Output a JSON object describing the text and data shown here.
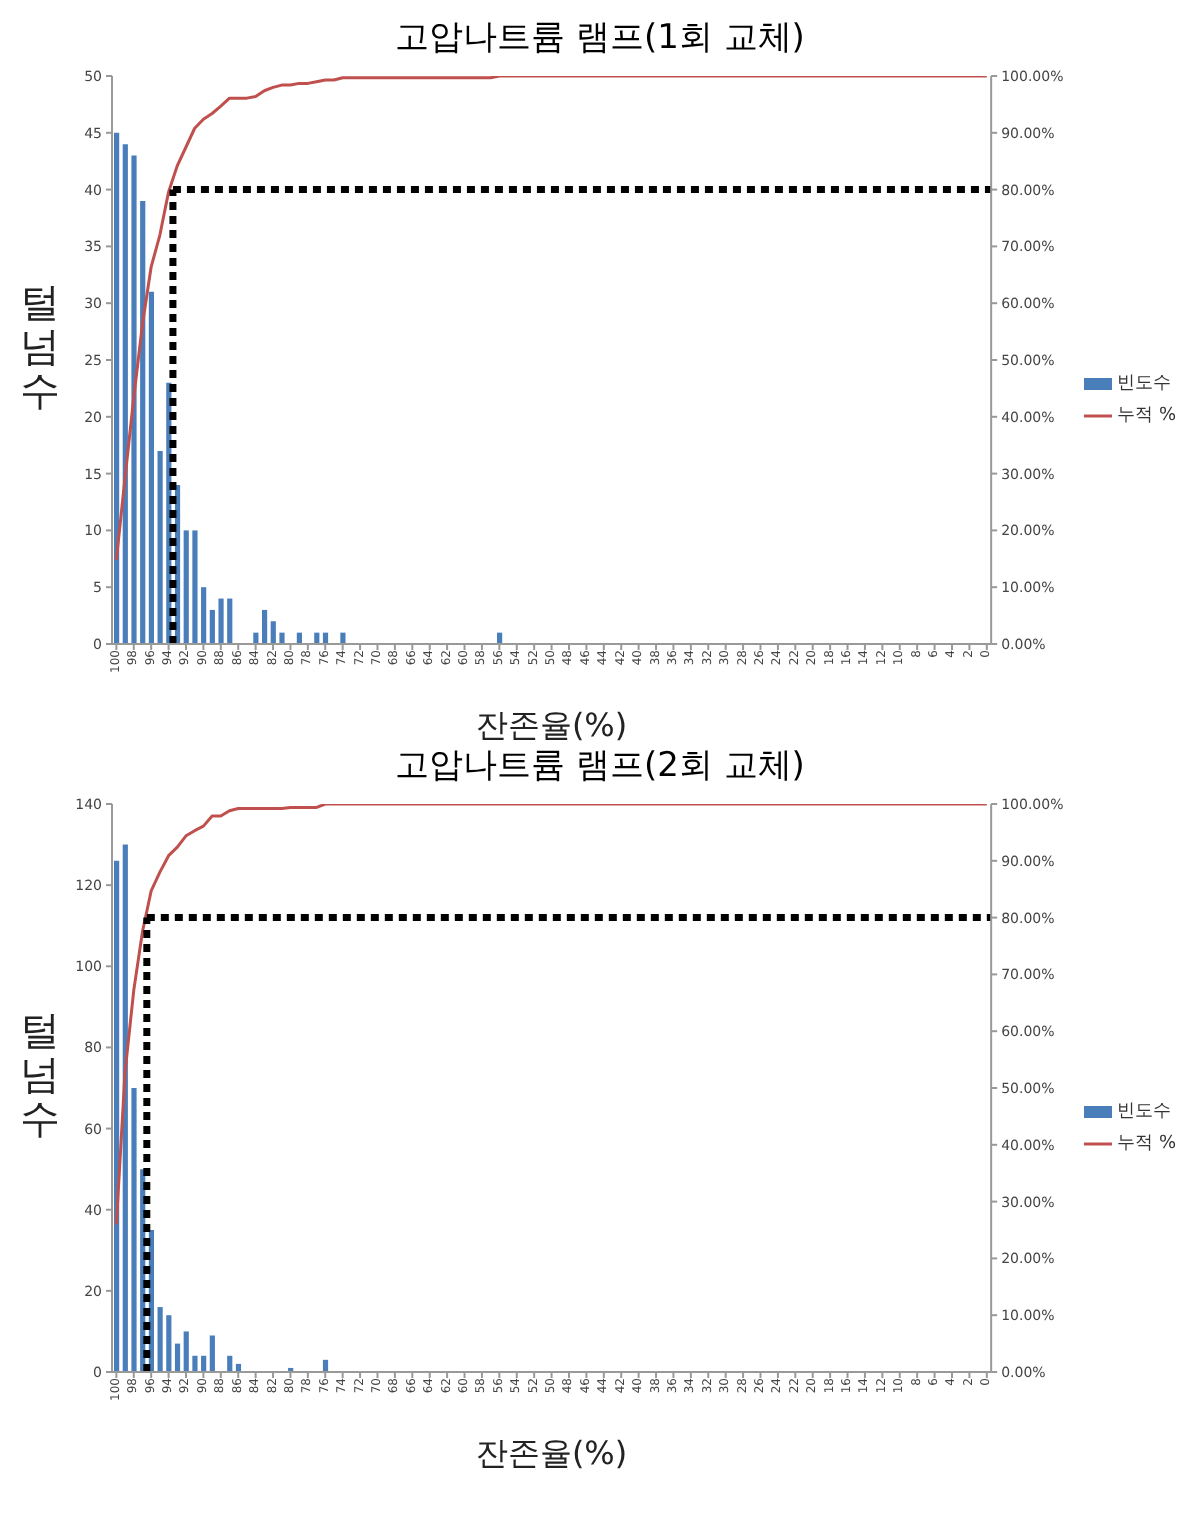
{
  "chart_data": [
    {
      "type": "bar",
      "title": "고압나트륨 램프(1회 교체)",
      "xlabel": "잔존율(%)",
      "ylabel": "털넘수",
      "x": [
        100,
        99,
        98,
        97,
        96,
        95,
        94,
        93,
        92,
        91,
        90,
        89,
        88,
        87,
        86,
        85,
        84,
        83,
        82,
        81,
        80,
        79,
        78,
        77,
        76,
        75,
        74,
        73,
        72,
        71,
        70,
        69,
        68,
        67,
        66,
        65,
        64,
        63,
        62,
        61,
        60,
        59,
        58,
        57,
        56,
        55,
        54,
        53,
        52,
        51,
        50,
        49,
        48,
        47,
        46,
        45,
        44,
        43,
        42,
        41,
        40,
        39,
        38,
        37,
        36,
        35,
        34,
        33,
        32,
        31,
        30,
        29,
        28,
        27,
        26,
        25,
        24,
        23,
        22,
        21,
        20,
        19,
        18,
        17,
        16,
        15,
        14,
        13,
        12,
        11,
        10,
        9,
        8,
        7,
        6,
        5,
        4,
        3,
        2,
        1,
        0
      ],
      "series": [
        {
          "name": "빈도수",
          "color": "#4a7ebb",
          "values": [
            45,
            44,
            43,
            39,
            31,
            17,
            23,
            14,
            10,
            10,
            5,
            3,
            4,
            4,
            0,
            0,
            1,
            3,
            2,
            1,
            0,
            1,
            0,
            1,
            1,
            0,
            1,
            0,
            0,
            0,
            0,
            0,
            0,
            0,
            0,
            0,
            0,
            0,
            0,
            0,
            0,
            0,
            0,
            0,
            1,
            0,
            0,
            0,
            0,
            0,
            0,
            0,
            0,
            0,
            0,
            0,
            0,
            0,
            0,
            0,
            0,
            0,
            0,
            0,
            0,
            0,
            0,
            0,
            0,
            0,
            0,
            0,
            0,
            0,
            0,
            0,
            0,
            0,
            0,
            0,
            0,
            0,
            0,
            0,
            0,
            0,
            0,
            0,
            0,
            0,
            0,
            0,
            0,
            0,
            0,
            0,
            0,
            0,
            0,
            0,
            0
          ]
        },
        {
          "name": "누적 %",
          "type": "line",
          "axis": "y2",
          "color": "#c0504d",
          "values": [
            14.8,
            29.3,
            43.4,
            56.3,
            66.4,
            72.0,
            79.6,
            84.2,
            87.5,
            90.8,
            92.4,
            93.4,
            94.7,
            96.1,
            96.1,
            96.1,
            96.4,
            97.4,
            98.0,
            98.4,
            98.4,
            98.7,
            98.7,
            99.0,
            99.3,
            99.3,
            99.7,
            99.7,
            99.7,
            99.7,
            99.7,
            99.7,
            99.7,
            99.7,
            99.7,
            99.7,
            99.7,
            99.7,
            99.7,
            99.7,
            99.7,
            99.7,
            99.7,
            99.7,
            100,
            100,
            100,
            100,
            100,
            100,
            100,
            100,
            100,
            100,
            100,
            100,
            100,
            100,
            100,
            100,
            100,
            100,
            100,
            100,
            100,
            100,
            100,
            100,
            100,
            100,
            100,
            100,
            100,
            100,
            100,
            100,
            100,
            100,
            100,
            100,
            100,
            100,
            100,
            100,
            100,
            100,
            100,
            100,
            100,
            100,
            100,
            100,
            100,
            100,
            100,
            100,
            100,
            100,
            100,
            100,
            100
          ]
        }
      ],
      "xlim": [
        100.5,
        -0.5
      ],
      "xticks": [
        100,
        98,
        96,
        94,
        92,
        90,
        88,
        86,
        84,
        82,
        80,
        78,
        76,
        74,
        72,
        70,
        68,
        66,
        64,
        62,
        60,
        58,
        56,
        54,
        52,
        50,
        48,
        46,
        44,
        42,
        40,
        38,
        36,
        34,
        32,
        30,
        28,
        26,
        24,
        22,
        20,
        18,
        16,
        14,
        12,
        10,
        8,
        6,
        4,
        2,
        0
      ],
      "ylim": [
        0,
        50
      ],
      "yticks": [
        0,
        5,
        10,
        15,
        20,
        25,
        30,
        35,
        40,
        45,
        50
      ],
      "y2lim": [
        0,
        100
      ],
      "y2ticks": [
        {
          "value": 0,
          "label": "0.00%"
        },
        {
          "value": 10,
          "label": "10.00%"
        },
        {
          "value": 20,
          "label": "20.00%"
        },
        {
          "value": 30,
          "label": "30.00%"
        },
        {
          "value": 40,
          "label": "40.00%"
        },
        {
          "value": 50,
          "label": "50.00%"
        },
        {
          "value": 60,
          "label": "60.00%"
        },
        {
          "value": 70,
          "label": "70.00%"
        },
        {
          "value": 80,
          "label": "80.00%"
        },
        {
          "value": 90,
          "label": "90.00%"
        },
        {
          "value": 100,
          "label": "100.00%"
        }
      ],
      "ref_lines": [
        {
          "axis": "x",
          "value": 93.5,
          "color": "#000000",
          "line_style": "dotted"
        },
        {
          "axis": "y2",
          "value": 80,
          "color": "#000000",
          "line_style": "dotted"
        }
      ],
      "legend": "right",
      "grid": false,
      "marker": "none"
    },
    {
      "type": "bar",
      "title": "고압나트륨 램프(2회 교체)",
      "xlabel": "잔존율(%)",
      "ylabel": "털넘수",
      "x": [
        100,
        99,
        98,
        97,
        96,
        95,
        94,
        93,
        92,
        91,
        90,
        89,
        88,
        87,
        86,
        85,
        84,
        83,
        82,
        81,
        80,
        79,
        78,
        77,
        76,
        75,
        74,
        73,
        72,
        71,
        70,
        69,
        68,
        67,
        66,
        65,
        64,
        63,
        62,
        61,
        60,
        59,
        58,
        57,
        56,
        55,
        54,
        53,
        52,
        51,
        50,
        49,
        48,
        47,
        46,
        45,
        44,
        43,
        42,
        41,
        40,
        39,
        38,
        37,
        36,
        35,
        34,
        33,
        32,
        31,
        30,
        29,
        28,
        27,
        26,
        25,
        24,
        23,
        22,
        21,
        20,
        19,
        18,
        17,
        16,
        15,
        14,
        13,
        12,
        11,
        10,
        9,
        8,
        7,
        6,
        5,
        4,
        3,
        2,
        1,
        0
      ],
      "series": [
        {
          "name": "빈도수",
          "color": "#4a7ebb",
          "values": [
            126,
            130,
            70,
            50,
            35,
            16,
            14,
            7,
            10,
            4,
            4,
            9,
            0,
            4,
            2,
            0,
            0,
            0,
            0,
            0,
            1,
            0,
            0,
            0,
            3,
            0,
            0,
            0,
            0,
            0,
            0,
            0,
            0,
            0,
            0,
            0,
            0,
            0,
            0,
            0,
            0,
            0,
            0,
            0,
            0,
            0,
            0,
            0,
            0,
            0,
            0,
            0,
            0,
            0,
            0,
            0,
            0,
            0,
            0,
            0,
            0,
            0,
            0,
            0,
            0,
            0,
            0,
            0,
            0,
            0,
            0,
            0,
            0,
            0,
            0,
            0,
            0,
            0,
            0,
            0,
            0,
            0,
            0,
            0,
            0,
            0,
            0,
            0,
            0,
            0,
            0,
            0,
            0,
            0,
            0,
            0,
            0,
            0,
            0,
            0,
            0
          ]
        },
        {
          "name": "누적 %",
          "type": "line",
          "axis": "y2",
          "color": "#c0504d",
          "values": [
            26.0,
            52.8,
            67.2,
            77.5,
            84.7,
            88.0,
            90.9,
            92.4,
            94.4,
            95.3,
            96.1,
            97.9,
            97.9,
            98.8,
            99.2,
            99.2,
            99.2,
            99.2,
            99.2,
            99.2,
            99.4,
            99.4,
            99.4,
            99.4,
            100,
            100,
            100,
            100,
            100,
            100,
            100,
            100,
            100,
            100,
            100,
            100,
            100,
            100,
            100,
            100,
            100,
            100,
            100,
            100,
            100,
            100,
            100,
            100,
            100,
            100,
            100,
            100,
            100,
            100,
            100,
            100,
            100,
            100,
            100,
            100,
            100,
            100,
            100,
            100,
            100,
            100,
            100,
            100,
            100,
            100,
            100,
            100,
            100,
            100,
            100,
            100,
            100,
            100,
            100,
            100,
            100,
            100,
            100,
            100,
            100,
            100,
            100,
            100,
            100,
            100,
            100,
            100,
            100,
            100,
            100,
            100,
            100,
            100,
            100,
            100,
            100
          ]
        }
      ],
      "xlim": [
        100.5,
        -0.5
      ],
      "xticks": [
        100,
        98,
        96,
        94,
        92,
        90,
        88,
        86,
        84,
        82,
        80,
        78,
        76,
        74,
        72,
        70,
        68,
        66,
        64,
        62,
        60,
        58,
        56,
        54,
        52,
        50,
        48,
        46,
        44,
        42,
        40,
        38,
        36,
        34,
        32,
        30,
        28,
        26,
        24,
        22,
        20,
        18,
        16,
        14,
        12,
        10,
        8,
        6,
        4,
        2,
        0
      ],
      "ylim": [
        0,
        140
      ],
      "yticks": [
        0,
        20,
        40,
        60,
        80,
        100,
        120,
        140
      ],
      "y2lim": [
        0,
        100
      ],
      "y2ticks": [
        {
          "value": 0,
          "label": "0.00%"
        },
        {
          "value": 10,
          "label": "10.00%"
        },
        {
          "value": 20,
          "label": "20.00%"
        },
        {
          "value": 30,
          "label": "30.00%"
        },
        {
          "value": 40,
          "label": "40.00%"
        },
        {
          "value": 50,
          "label": "50.00%"
        },
        {
          "value": 60,
          "label": "60.00%"
        },
        {
          "value": 70,
          "label": "70.00%"
        },
        {
          "value": 80,
          "label": "80.00%"
        },
        {
          "value": 90,
          "label": "90.00%"
        },
        {
          "value": 100,
          "label": "100.00%"
        }
      ],
      "ref_lines": [
        {
          "axis": "x",
          "value": 96.5,
          "color": "#000000",
          "line_style": "dotted"
        },
        {
          "axis": "y2",
          "value": 80,
          "color": "#000000",
          "line_style": "dotted"
        }
      ],
      "legend": "right",
      "grid": false,
      "marker": "none"
    }
  ]
}
